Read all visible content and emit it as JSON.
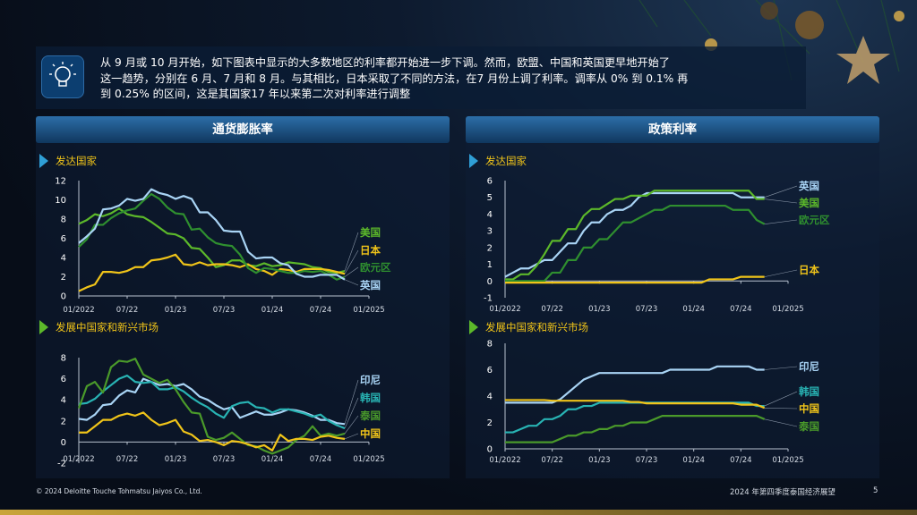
{
  "intro": {
    "line1": "从 9 月或 10 月开始，如下图表中显示的大多数地区的利率都开始进一步下调。然而，欧盟、中国和英国更早地开始了",
    "line2": "这一趋势，分别在 6 月、7 月和 8 月。与其相比，日本采取了不同的方法，在7 月份上调了利率。调率从 0% 到 0.1% 再",
    "line3": "到 0.25% 的区间，这是其国家17 年以来第二次对利率进行调整"
  },
  "panels": {
    "inflation": {
      "title": "通货膨胀率"
    },
    "policy": {
      "title": "政策利率"
    }
  },
  "sections": {
    "developed": "发达国家",
    "emerging": "发展中国家和新兴市场"
  },
  "footer": {
    "copyright": "© 2024 Deloitte Touche Tohmatsu Jaiyos Co., Ltd.",
    "report": "2024 年第四季度泰国经济展望",
    "page": "5"
  },
  "colors": {
    "usa": "#5cb82a",
    "japan": "#f0c419",
    "euro": "#2f8f2f",
    "uk": "#a9d4f5",
    "indonesia": "#a9d4f5",
    "korea": "#28b3b3",
    "thailand": "#4a9a2a",
    "china": "#f0c419"
  },
  "chart_data": [
    {
      "id": "infl_dev",
      "type": "line",
      "title": "通货膨胀率 - 发达国家",
      "xticks": [
        "01/2022",
        "07/22",
        "01/23",
        "07/23",
        "01/24",
        "07/24",
        "01/2025"
      ],
      "x_range": [
        0,
        36
      ],
      "ylim": [
        0,
        12
      ],
      "yticks": [
        "0",
        "2",
        "4",
        "6",
        "8",
        "10",
        "12"
      ],
      "series": [
        {
          "name": "美国",
          "key": "usa",
          "values": [
            7.5,
            7.9,
            8.5,
            8.3,
            8.6,
            9.1,
            8.5,
            8.3,
            8.2,
            7.7,
            7.1,
            6.5,
            6.4,
            6.0,
            5.0,
            4.9,
            4.0,
            3.0,
            3.2,
            3.7,
            3.7,
            3.2,
            3.1,
            3.4,
            3.1,
            3.2,
            3.5,
            3.4,
            3.3,
            3.0,
            2.9,
            2.5,
            2.4,
            2.6
          ]
        },
        {
          "name": "日本",
          "key": "japan",
          "values": [
            0.5,
            0.9,
            1.2,
            2.5,
            2.5,
            2.4,
            2.6,
            3.0,
            3.0,
            3.7,
            3.8,
            4.0,
            4.3,
            3.3,
            3.2,
            3.5,
            3.2,
            3.3,
            3.3,
            3.2,
            3.0,
            3.3,
            2.8,
            2.6,
            2.2,
            2.8,
            2.7,
            2.5,
            2.8,
            2.8,
            2.8,
            2.7,
            2.5,
            2.3
          ]
        },
        {
          "name": "欧元区",
          "key": "euro",
          "values": [
            5.1,
            5.9,
            7.4,
            7.4,
            8.1,
            8.6,
            8.9,
            9.1,
            9.9,
            10.6,
            10.1,
            9.2,
            8.6,
            8.5,
            6.9,
            7.0,
            6.1,
            5.5,
            5.3,
            5.2,
            4.3,
            2.9,
            2.4,
            2.9,
            2.8,
            2.6,
            2.4,
            2.4,
            2.6,
            2.5,
            2.6,
            2.2,
            1.7,
            2.0
          ]
        },
        {
          "name": "英国",
          "key": "uk",
          "values": [
            5.5,
            6.2,
            7.0,
            9.0,
            9.1,
            9.4,
            10.1,
            9.9,
            10.1,
            11.1,
            10.7,
            10.5,
            10.1,
            10.4,
            10.1,
            8.7,
            8.7,
            7.9,
            6.8,
            6.7,
            6.7,
            4.6,
            3.9,
            4.0,
            4.0,
            3.4,
            3.2,
            2.3,
            2.0,
            2.0,
            2.2,
            2.2,
            2.2,
            1.7
          ]
        }
      ]
    },
    {
      "id": "infl_em",
      "type": "line",
      "title": "通货膨胀率 - 发展中国家和新兴市场",
      "xticks": [
        "01/2022",
        "07/22",
        "01/23",
        "07/23",
        "01/24",
        "07/24",
        "01/2025"
      ],
      "x_range": [
        0,
        36
      ],
      "ylim": [
        -2,
        8
      ],
      "yticks": [
        "-2",
        "0",
        "2",
        "4",
        "6",
        "8"
      ],
      "series": [
        {
          "name": "印尼",
          "key": "indonesia",
          "values": [
            2.2,
            2.1,
            2.6,
            3.5,
            3.6,
            4.4,
            4.9,
            4.7,
            6.0,
            5.7,
            5.4,
            5.5,
            5.3,
            5.5,
            5.0,
            4.3,
            4.0,
            3.5,
            3.1,
            3.3,
            2.3,
            2.6,
            2.9,
            2.6,
            2.6,
            2.8,
            3.1,
            3.0,
            2.8,
            2.5,
            2.1,
            2.1,
            1.8,
            1.7
          ]
        },
        {
          "name": "韩国",
          "key": "korea",
          "values": [
            3.6,
            3.7,
            4.1,
            4.8,
            5.4,
            6.0,
            6.3,
            5.7,
            5.6,
            5.7,
            5.0,
            5.0,
            5.2,
            4.8,
            4.2,
            3.7,
            3.3,
            2.7,
            2.3,
            3.4,
            3.7,
            3.8,
            3.3,
            3.2,
            2.8,
            3.1,
            3.1,
            2.9,
            2.7,
            2.4,
            2.6,
            2.0,
            1.6,
            1.3
          ]
        },
        {
          "name": "泰国",
          "key": "thailand",
          "values": [
            3.2,
            5.3,
            5.7,
            4.7,
            7.1,
            7.7,
            7.6,
            7.9,
            6.4,
            6.0,
            5.6,
            5.9,
            5.0,
            3.8,
            2.8,
            2.7,
            0.5,
            0.2,
            0.4,
            0.9,
            0.3,
            -0.3,
            -0.4,
            -0.8,
            -1.1,
            -0.8,
            -0.5,
            0.2,
            0.6,
            1.5,
            0.6,
            0.8,
            0.6,
            0.8
          ]
        },
        {
          "name": "中国",
          "key": "china",
          "values": [
            0.9,
            0.9,
            1.5,
            2.1,
            2.1,
            2.5,
            2.7,
            2.5,
            2.8,
            2.1,
            1.6,
            1.8,
            2.1,
            1.0,
            0.7,
            0.1,
            0.2,
            0.0,
            -0.3,
            0.1,
            0.0,
            -0.2,
            -0.5,
            -0.3,
            -0.8,
            0.7,
            0.1,
            0.3,
            0.3,
            0.2,
            0.5,
            0.6,
            0.4,
            0.3
          ]
        }
      ]
    },
    {
      "id": "rate_dev",
      "type": "line",
      "title": "政策利率 - 发达国家",
      "xticks": [
        "01/2022",
        "07/22",
        "01/23",
        "07/23",
        "01/24",
        "07/24",
        "01/2025"
      ],
      "x_range": [
        0,
        36
      ],
      "ylim": [
        -1,
        6
      ],
      "yticks": [
        "-1",
        "0",
        "1",
        "2",
        "3",
        "4",
        "5",
        "6"
      ],
      "series": [
        {
          "name": "英国",
          "key": "uk",
          "values": [
            0.25,
            0.5,
            0.75,
            0.75,
            1.0,
            1.25,
            1.25,
            1.75,
            2.25,
            2.25,
            3.0,
            3.5,
            3.5,
            4.0,
            4.25,
            4.25,
            4.5,
            5.0,
            5.25,
            5.25,
            5.25,
            5.25,
            5.25,
            5.25,
            5.25,
            5.25,
            5.25,
            5.25,
            5.25,
            5.25,
            5.0,
            5.0,
            5.0,
            5.0
          ]
        },
        {
          "name": "美国",
          "key": "usa",
          "values": [
            0.1,
            0.1,
            0.4,
            0.4,
            0.9,
            1.6,
            2.4,
            2.4,
            3.1,
            3.1,
            3.9,
            4.3,
            4.3,
            4.6,
            4.9,
            4.9,
            5.1,
            5.1,
            5.1,
            5.4,
            5.4,
            5.4,
            5.4,
            5.4,
            5.4,
            5.4,
            5.4,
            5.4,
            5.4,
            5.4,
            5.4,
            5.4,
            4.9,
            4.9
          ]
        },
        {
          "name": "欧元区",
          "key": "euro",
          "values": [
            0.0,
            0.0,
            0.0,
            0.0,
            0.0,
            0.0,
            0.5,
            0.5,
            1.25,
            1.25,
            2.0,
            2.0,
            2.5,
            2.5,
            3.0,
            3.5,
            3.5,
            3.75,
            4.0,
            4.25,
            4.25,
            4.5,
            4.5,
            4.5,
            4.5,
            4.5,
            4.5,
            4.5,
            4.5,
            4.25,
            4.25,
            4.25,
            3.65,
            3.4
          ]
        },
        {
          "name": "日本",
          "key": "japan",
          "values": [
            -0.1,
            -0.1,
            -0.1,
            -0.1,
            -0.1,
            -0.1,
            -0.1,
            -0.1,
            -0.1,
            -0.1,
            -0.1,
            -0.1,
            -0.1,
            -0.1,
            -0.1,
            -0.1,
            -0.1,
            -0.1,
            -0.1,
            -0.1,
            -0.1,
            -0.1,
            -0.1,
            -0.1,
            -0.1,
            -0.1,
            0.1,
            0.1,
            0.1,
            0.1,
            0.25,
            0.25,
            0.25,
            0.25
          ]
        }
      ]
    },
    {
      "id": "rate_em",
      "type": "line",
      "title": "政策利率 - 发展中国家和新兴市场",
      "xticks": [
        "01/2022",
        "07/22",
        "01/23",
        "07/23",
        "01/24",
        "07/24",
        "01/2025"
      ],
      "x_range": [
        0,
        36
      ],
      "ylim": [
        0,
        8
      ],
      "yticks": [
        "0",
        "2",
        "4",
        "6",
        "8"
      ],
      "series": [
        {
          "name": "印尼",
          "key": "indonesia",
          "values": [
            3.5,
            3.5,
            3.5,
            3.5,
            3.5,
            3.5,
            3.5,
            3.75,
            4.25,
            4.75,
            5.25,
            5.5,
            5.75,
            5.75,
            5.75,
            5.75,
            5.75,
            5.75,
            5.75,
            5.75,
            5.75,
            6.0,
            6.0,
            6.0,
            6.0,
            6.0,
            6.0,
            6.25,
            6.25,
            6.25,
            6.25,
            6.25,
            6.0,
            6.0
          ]
        },
        {
          "name": "韩国",
          "key": "korea",
          "values": [
            1.25,
            1.25,
            1.5,
            1.75,
            1.75,
            2.25,
            2.25,
            2.5,
            3.0,
            3.0,
            3.25,
            3.25,
            3.5,
            3.5,
            3.5,
            3.5,
            3.5,
            3.5,
            3.5,
            3.5,
            3.5,
            3.5,
            3.5,
            3.5,
            3.5,
            3.5,
            3.5,
            3.5,
            3.5,
            3.5,
            3.5,
            3.5,
            3.25,
            3.25
          ]
        },
        {
          "name": "中国",
          "key": "china",
          "values": [
            3.7,
            3.7,
            3.7,
            3.7,
            3.7,
            3.7,
            3.65,
            3.65,
            3.65,
            3.65,
            3.65,
            3.65,
            3.65,
            3.65,
            3.65,
            3.65,
            3.55,
            3.55,
            3.45,
            3.45,
            3.45,
            3.45,
            3.45,
            3.45,
            3.45,
            3.45,
            3.45,
            3.45,
            3.45,
            3.45,
            3.35,
            3.35,
            3.35,
            3.1
          ]
        },
        {
          "name": "泰国",
          "key": "thailand",
          "values": [
            0.5,
            0.5,
            0.5,
            0.5,
            0.5,
            0.5,
            0.5,
            0.75,
            1.0,
            1.0,
            1.25,
            1.25,
            1.5,
            1.5,
            1.75,
            1.75,
            2.0,
            2.0,
            2.0,
            2.25,
            2.5,
            2.5,
            2.5,
            2.5,
            2.5,
            2.5,
            2.5,
            2.5,
            2.5,
            2.5,
            2.5,
            2.5,
            2.5,
            2.25
          ]
        }
      ]
    }
  ]
}
